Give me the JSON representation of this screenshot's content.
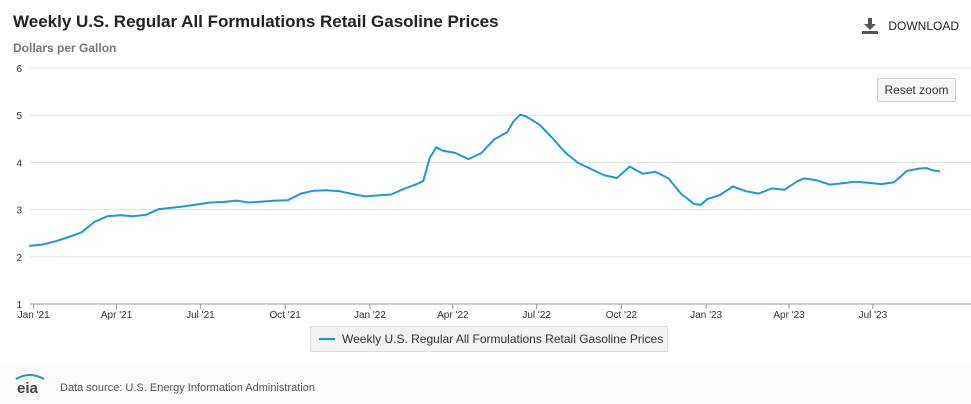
{
  "header": {
    "title": "Weekly U.S. Regular All Formulations Retail Gasoline Prices",
    "subtitle": "Dollars per Gallon",
    "download_label": "DOWNLOAD",
    "reset_zoom_label": "Reset zoom"
  },
  "footer": {
    "logo_text": "eia",
    "source": "Data source: U.S. Energy Information Administration"
  },
  "chart_data": {
    "type": "line",
    "title": "Weekly U.S. Regular All Formulations Retail Gasoline Prices",
    "ylabel": "Dollars per Gallon",
    "xlabel": "",
    "ylim": [
      1,
      6
    ],
    "xlim": [
      "2020-12-28",
      "2023-10-09"
    ],
    "yticks": [
      1,
      2,
      3,
      4,
      5,
      6
    ],
    "xticks": [
      {
        "date": "2021-01-01",
        "label": "Jan '21"
      },
      {
        "date": "2021-04-01",
        "label": "Apr '21"
      },
      {
        "date": "2021-07-01",
        "label": "Jul '21"
      },
      {
        "date": "2021-10-01",
        "label": "Oct '21"
      },
      {
        "date": "2022-01-01",
        "label": "Jan '22"
      },
      {
        "date": "2022-04-01",
        "label": "Apr '22"
      },
      {
        "date": "2022-07-01",
        "label": "Jul '22"
      },
      {
        "date": "2022-10-01",
        "label": "Oct '22"
      },
      {
        "date": "2023-01-01",
        "label": "Jan '23"
      },
      {
        "date": "2023-04-01",
        "label": "Apr '23"
      },
      {
        "date": "2023-07-01",
        "label": "Jul '23"
      }
    ],
    "grid": true,
    "legend_position": "bottom-center",
    "series": [
      {
        "name": "Weekly U.S. Regular All Formulations Retail Gasoline Prices",
        "color": "#1a9ad6",
        "points": [
          [
            "2020-12-28",
            2.23
          ],
          [
            "2021-01-11",
            2.26
          ],
          [
            "2021-01-25",
            2.33
          ],
          [
            "2021-02-08",
            2.42
          ],
          [
            "2021-02-22",
            2.52
          ],
          [
            "2021-03-08",
            2.74
          ],
          [
            "2021-03-22",
            2.86
          ],
          [
            "2021-04-05",
            2.88
          ],
          [
            "2021-04-19",
            2.86
          ],
          [
            "2021-05-03",
            2.89
          ],
          [
            "2021-05-17",
            3.01
          ],
          [
            "2021-05-31",
            3.04
          ],
          [
            "2021-06-14",
            3.07
          ],
          [
            "2021-06-28",
            3.11
          ],
          [
            "2021-07-12",
            3.15
          ],
          [
            "2021-07-26",
            3.16
          ],
          [
            "2021-08-09",
            3.19
          ],
          [
            "2021-08-23",
            3.15
          ],
          [
            "2021-09-06",
            3.17
          ],
          [
            "2021-09-20",
            3.19
          ],
          [
            "2021-10-04",
            3.2
          ],
          [
            "2021-10-18",
            3.34
          ],
          [
            "2021-11-01",
            3.4
          ],
          [
            "2021-11-15",
            3.41
          ],
          [
            "2021-11-29",
            3.39
          ],
          [
            "2021-12-13",
            3.33
          ],
          [
            "2021-12-27",
            3.28
          ],
          [
            "2022-01-10",
            3.3
          ],
          [
            "2022-01-24",
            3.32
          ],
          [
            "2022-02-07",
            3.44
          ],
          [
            "2022-02-21",
            3.54
          ],
          [
            "2022-02-28",
            3.61
          ],
          [
            "2022-03-07",
            4.1
          ],
          [
            "2022-03-14",
            4.32
          ],
          [
            "2022-03-21",
            4.25
          ],
          [
            "2022-04-04",
            4.2
          ],
          [
            "2022-04-18",
            4.07
          ],
          [
            "2022-05-02",
            4.2
          ],
          [
            "2022-05-16",
            4.49
          ],
          [
            "2022-05-30",
            4.64
          ],
          [
            "2022-06-06",
            4.87
          ],
          [
            "2022-06-13",
            5.01
          ],
          [
            "2022-06-20",
            4.97
          ],
          [
            "2022-07-04",
            4.8
          ],
          [
            "2022-07-18",
            4.52
          ],
          [
            "2022-08-01",
            4.21
          ],
          [
            "2022-08-15",
            3.99
          ],
          [
            "2022-08-29",
            3.86
          ],
          [
            "2022-09-12",
            3.73
          ],
          [
            "2022-09-26",
            3.67
          ],
          [
            "2022-10-10",
            3.91
          ],
          [
            "2022-10-24",
            3.76
          ],
          [
            "2022-11-07",
            3.8
          ],
          [
            "2022-11-21",
            3.66
          ],
          [
            "2022-12-05",
            3.33
          ],
          [
            "2022-12-19",
            3.12
          ],
          [
            "2022-12-26",
            3.1
          ],
          [
            "2023-01-02",
            3.22
          ],
          [
            "2023-01-16",
            3.31
          ],
          [
            "2023-01-30",
            3.49
          ],
          [
            "2023-02-13",
            3.39
          ],
          [
            "2023-02-27",
            3.34
          ],
          [
            "2023-03-13",
            3.45
          ],
          [
            "2023-03-27",
            3.42
          ],
          [
            "2023-04-10",
            3.6
          ],
          [
            "2023-04-17",
            3.66
          ],
          [
            "2023-05-01",
            3.62
          ],
          [
            "2023-05-15",
            3.53
          ],
          [
            "2023-05-29",
            3.56
          ],
          [
            "2023-06-12",
            3.59
          ],
          [
            "2023-06-26",
            3.57
          ],
          [
            "2023-07-10",
            3.54
          ],
          [
            "2023-07-24",
            3.58
          ],
          [
            "2023-08-07",
            3.82
          ],
          [
            "2023-08-21",
            3.87
          ],
          [
            "2023-08-28",
            3.88
          ],
          [
            "2023-09-04",
            3.83
          ],
          [
            "2023-09-11",
            3.81
          ]
        ]
      }
    ]
  }
}
